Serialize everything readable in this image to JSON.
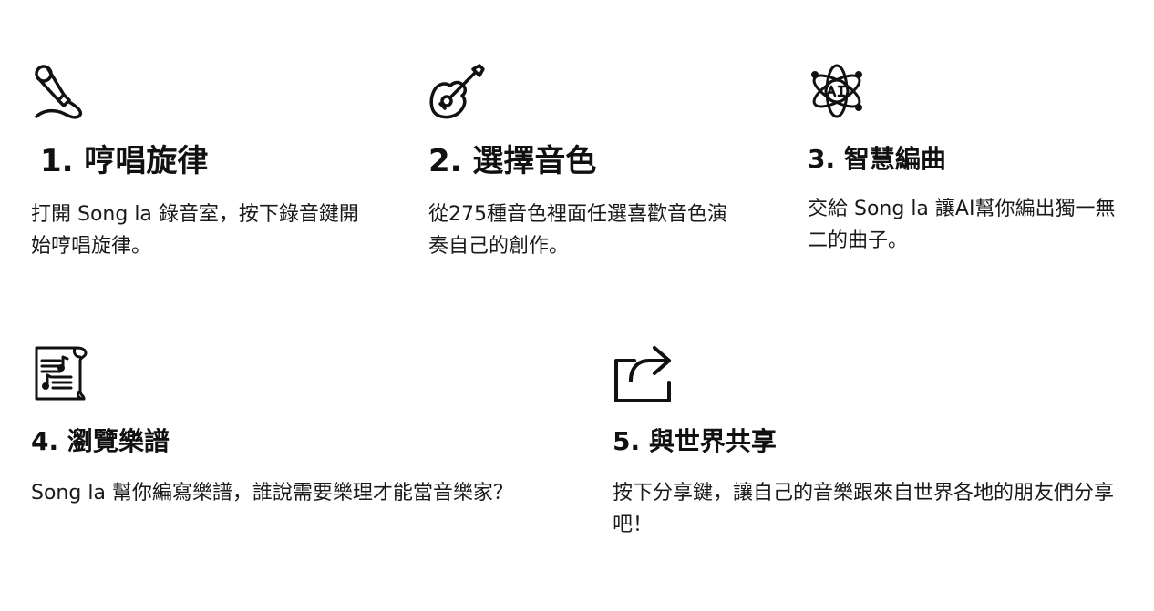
{
  "steps": [
    {
      "icon": "microphone-icon",
      "title": "1. 哼唱旋律",
      "description": "打開 Song la 錄音室，按下錄音鍵開始哼唱旋律。"
    },
    {
      "icon": "guitar-icon",
      "title": "2. 選擇音色",
      "description": "從275種音色裡面任選喜歡音色演奏自己的創作。"
    },
    {
      "icon": "ai-atom-icon",
      "title": "3. 智慧編曲",
      "description": "交給 Song la 讓AI幫你編出獨一無二的曲子。"
    },
    {
      "icon": "sheet-music-scroll-icon",
      "title": "4. 瀏覽樂譜",
      "description": "Song la 幫你編寫樂譜，誰說需要樂理才能當音樂家？"
    },
    {
      "icon": "share-icon",
      "title": "5. 與世界共享",
      "description": "按下分享鍵，讓自己的音樂跟來自世界各地的朋友們分享吧！"
    }
  ],
  "colors": {
    "text": "#111111",
    "background": "#ffffff"
  }
}
